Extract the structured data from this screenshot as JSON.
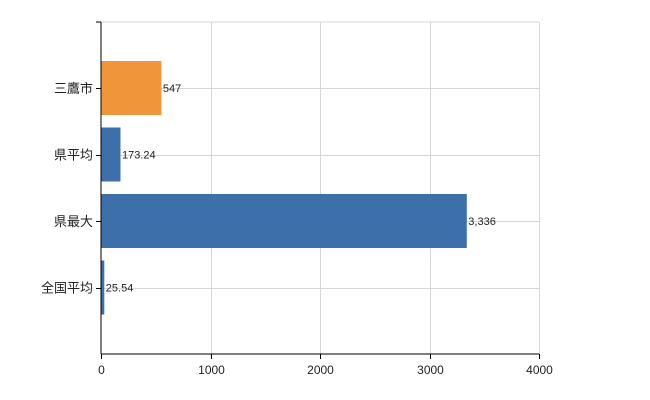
{
  "chart_data": {
    "type": "bar",
    "orientation": "horizontal",
    "categories": [
      "三鷹市",
      "県平均",
      "県最大",
      "全国平均"
    ],
    "values": [
      547,
      173.24,
      3336,
      25.54
    ],
    "value_labels": [
      "547",
      "173.24",
      "3,336",
      "25.54"
    ],
    "bar_colors": [
      "#f0953a",
      "#3d6fab",
      "#3d6fab",
      "#3d6fab"
    ],
    "xlim": [
      0,
      4000
    ],
    "x_ticks": [
      0,
      1000,
      2000,
      3000,
      4000
    ],
    "x_tick_labels": [
      "0",
      "1000",
      "2000",
      "3000",
      "4000"
    ],
    "grid": true,
    "legend": "none",
    "title": "",
    "xlabel": "",
    "ylabel": ""
  }
}
